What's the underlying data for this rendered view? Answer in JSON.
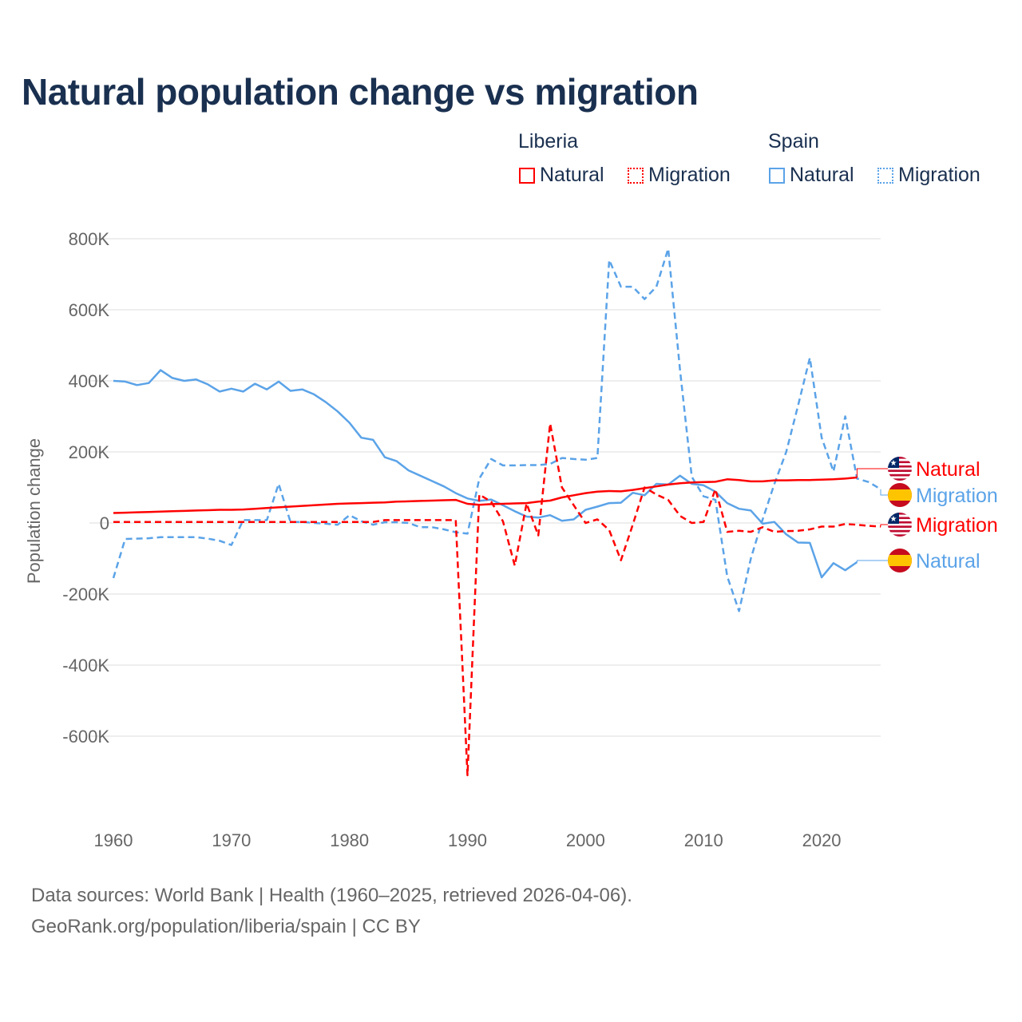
{
  "title": "Natural population change vs migration",
  "legend": {
    "groups": [
      {
        "name": "Liberia",
        "items": [
          "Natural",
          "Migration"
        ],
        "color": "#ff0000"
      },
      {
        "name": "Spain",
        "items": [
          "Natural",
          "Migration"
        ],
        "color": "#5ba3e8"
      }
    ]
  },
  "footer": {
    "line1": "Data sources: World Bank | Health (1960–2025, retrieved 2026-04-06).",
    "line2": "GeoRank.org/population/liberia/spain | CC BY"
  },
  "chart_data": {
    "type": "line",
    "title": "Natural population change vs migration",
    "xlabel": "",
    "ylabel": "Population change",
    "xlim": [
      1960,
      2025
    ],
    "ylim": [
      -800000,
      800000
    ],
    "x_ticks": [
      "1960",
      "1970",
      "1980",
      "1990",
      "2000",
      "2010",
      "2020"
    ],
    "y_ticks": [
      {
        "v": 800,
        "label": "800K"
      },
      {
        "v": 600,
        "label": "600K"
      },
      {
        "v": 400,
        "label": "400K"
      },
      {
        "v": 200,
        "label": "200K"
      },
      {
        "v": 0,
        "label": "0"
      },
      {
        "v": -200,
        "label": "-200K"
      },
      {
        "v": -400,
        "label": "-400K"
      },
      {
        "v": -600,
        "label": "-600K"
      }
    ],
    "units": "thousands",
    "grid": true,
    "legend_position": "top-right",
    "start_year": 1960,
    "series": [
      {
        "name": "Spain Natural",
        "country": "Spain",
        "label": "Natural",
        "color": "#5ba3e8",
        "dashed": false,
        "values": [
          400,
          398,
          388,
          394,
          430,
          408,
          400,
          404,
          390,
          370,
          378,
          370,
          392,
          376,
          398,
          372,
          376,
          362,
          340,
          314,
          282,
          240,
          234,
          185,
          174,
          148,
          133,
          118,
          103,
          84,
          69,
          62,
          66,
          50,
          33,
          18,
          15,
          22,
          6,
          10,
          37,
          46,
          56,
          57,
          85,
          78,
          110,
          108,
          133,
          110,
          106,
          88,
          56,
          40,
          35,
          -2,
          3,
          -32,
          -55,
          -56,
          -153,
          -113,
          -133,
          -110
        ]
      },
      {
        "name": "Spain Migration",
        "country": "Spain",
        "label": "Migration",
        "color": "#5ba3e8",
        "dashed": true,
        "values": [
          -155,
          -45,
          -44,
          -43,
          -40,
          -40,
          -40,
          -40,
          -44,
          -50,
          -62,
          8,
          8,
          8,
          110,
          3,
          3,
          0,
          -2,
          -5,
          22,
          5,
          -5,
          2,
          2,
          0,
          -12,
          -12,
          -18,
          -26,
          -30,
          125,
          180,
          162,
          162,
          163,
          163,
          166,
          183,
          180,
          178,
          183,
          740,
          665,
          665,
          630,
          665,
          772,
          430,
          130,
          75,
          65,
          -150,
          -248,
          -100,
          10,
          110,
          200,
          330,
          465,
          240,
          145,
          300,
          125,
          115,
          95
        ]
      },
      {
        "name": "Liberia Natural",
        "country": "Liberia",
        "label": "Natural",
        "color": "#ff0000",
        "dashed": false,
        "values": [
          28,
          29,
          30,
          31,
          32,
          33,
          34,
          35,
          36,
          37,
          37,
          38,
          40,
          42,
          44,
          46,
          48,
          50,
          52,
          54,
          55,
          56,
          57,
          58,
          60,
          61,
          62,
          63,
          64,
          65,
          54,
          51,
          53,
          54,
          55,
          56,
          60,
          63,
          72,
          78,
          84,
          88,
          90,
          89,
          93,
          98,
          103,
          108,
          112,
          114,
          115,
          116,
          123,
          121,
          117,
          117,
          120,
          120,
          121,
          121,
          122,
          123,
          125,
          128
        ]
      },
      {
        "name": "Liberia Migration",
        "country": "Liberia",
        "label": "Migration",
        "color": "#ff0000",
        "dashed": true,
        "values": [
          3,
          3,
          3,
          3,
          3,
          3,
          3,
          3,
          3,
          3,
          3,
          3,
          3,
          3,
          3,
          3,
          3,
          3,
          3,
          3,
          3,
          3,
          3,
          8,
          8,
          8,
          8,
          8,
          8,
          8,
          -710,
          80,
          60,
          5,
          -120,
          55,
          -35,
          280,
          100,
          50,
          0,
          10,
          -20,
          -105,
          -5,
          100,
          80,
          65,
          20,
          0,
          3,
          95,
          -25,
          -22,
          -25,
          -12,
          -25,
          -23,
          -22,
          -18,
          -10,
          -10,
          -3,
          -5,
          -8,
          -10
        ]
      }
    ],
    "end_labels": [
      "Natural",
      "Migration",
      "Migration",
      "Natural"
    ]
  }
}
